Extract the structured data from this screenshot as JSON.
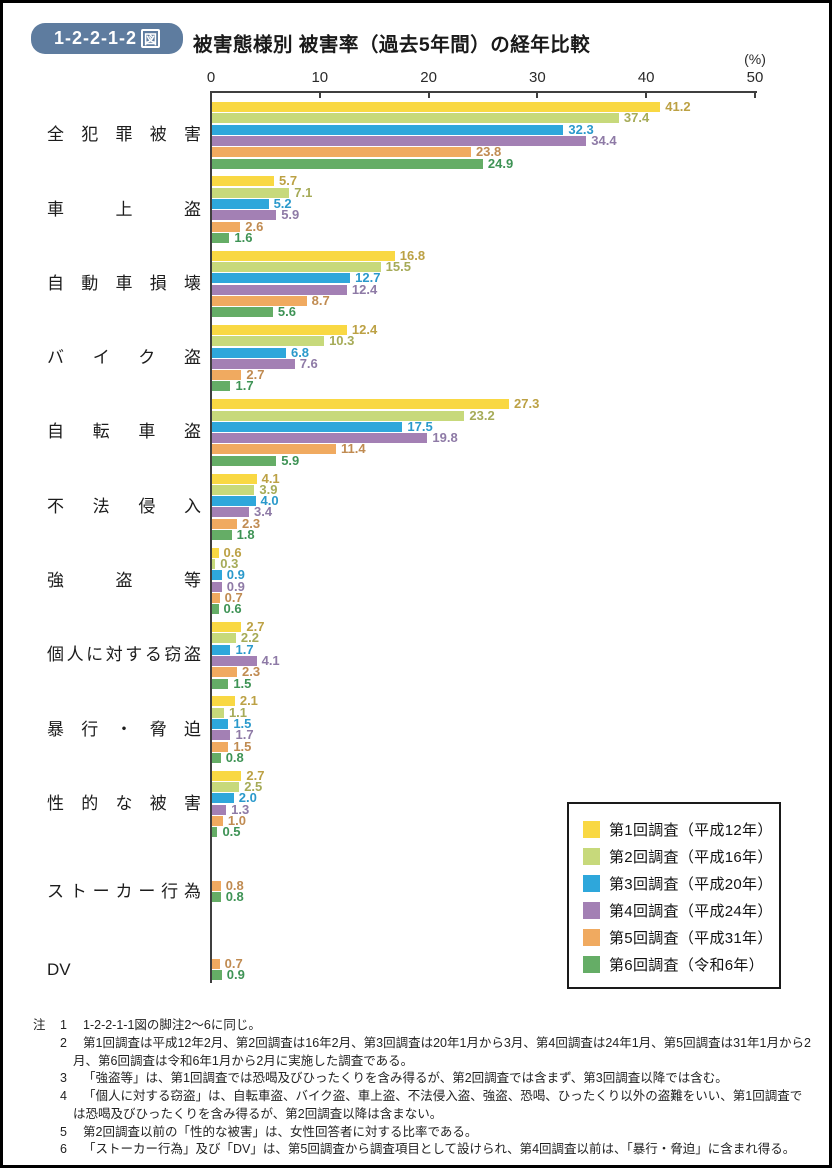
{
  "page": {
    "badge": "1-2-2-1-2",
    "badge_suffix": "図",
    "title": "被害態様別 被害率（過去5年間）の経年比較"
  },
  "chart_data": {
    "type": "bar",
    "orientation": "horizontal",
    "title": "被害態様別 被害率（過去5年間）の経年比較",
    "unit_label": "(%)",
    "xlim": [
      0,
      50
    ],
    "x_ticks": [
      0,
      10,
      20,
      30,
      40,
      50
    ],
    "grid": false,
    "legend_position": "bottom-right-inside",
    "categories": [
      "全犯罪被害",
      "車上盗",
      "自動車損壊",
      "バイク盗",
      "自転車盗",
      "不法侵入",
      "強盗等",
      "個人に対する窃盗",
      "暴行・脅迫",
      "性的な被害",
      "ストーカー行為",
      "DV"
    ],
    "series": [
      {
        "name": "第1回調査（平成12年）",
        "color": "#F9D843",
        "label_color": "#BCA144",
        "values": [
          41.2,
          5.7,
          16.8,
          12.4,
          27.3,
          4.1,
          0.6,
          2.7,
          2.1,
          2.7,
          null,
          null
        ]
      },
      {
        "name": "第2回調査（平成16年）",
        "color": "#C7D97B",
        "label_color": "#A6AB58",
        "values": [
          37.4,
          7.1,
          15.5,
          10.3,
          23.2,
          3.9,
          0.3,
          2.2,
          1.1,
          2.5,
          null,
          null
        ]
      },
      {
        "name": "第3回調査（平成20年）",
        "color": "#2EA7DB",
        "label_color": "#2A99CB",
        "values": [
          32.3,
          5.2,
          12.7,
          6.8,
          17.5,
          4.0,
          0.9,
          1.7,
          1.5,
          2.0,
          null,
          null
        ]
      },
      {
        "name": "第4回調査（平成24年）",
        "color": "#A380B4",
        "label_color": "#8E7AA6",
        "values": [
          34.4,
          5.9,
          12.4,
          7.6,
          19.8,
          3.4,
          0.9,
          4.1,
          1.7,
          1.3,
          null,
          null
        ]
      },
      {
        "name": "第5回調査（平成31年）",
        "color": "#F0AA60",
        "label_color": "#C08B51",
        "values": [
          23.8,
          2.6,
          8.7,
          2.7,
          11.4,
          2.3,
          0.7,
          2.3,
          1.5,
          1.0,
          0.8,
          0.7
        ]
      },
      {
        "name": "第6回調査（令和6年）",
        "color": "#65AD66",
        "label_color": "#3E9355",
        "values": [
          24.9,
          1.6,
          5.6,
          1.7,
          5.9,
          1.8,
          0.6,
          1.5,
          0.8,
          0.5,
          0.8,
          0.9
        ]
      }
    ]
  },
  "notes": {
    "prefix": "注",
    "items": [
      {
        "num": "1",
        "text": "1-2-2-1-1図の脚注2～6に同じ。"
      },
      {
        "num": "2",
        "text": "第1回調査は平成12年2月、第2回調査は16年2月、第3回調査は20年1月から3月、第4回調査は24年1月、第5回調査は31年1月から2月、第6回調査は令和6年1月から2月に実施した調査である。"
      },
      {
        "num": "3",
        "text": "「強盗等」は、第1回調査では恐喝及びひったくりを含み得るが、第2回調査では含まず、第3回調査以降では含む。"
      },
      {
        "num": "4",
        "text": "「個人に対する窃盗」は、自転車盗、バイク盗、車上盗、不法侵入盗、強盗、恐喝、ひったくり以外の盗難をいい、第1回調査では恐喝及びひったくりを含み得るが、第2回調査以降は含まない。"
      },
      {
        "num": "5",
        "text": "第2回調査以前の「性的な被害」は、女性回答者に対する比率である。"
      },
      {
        "num": "6",
        "text": "「ストーカー行為」及び「DV」は、第5回調査から調査項目として設けられ、第4回調査以前は、「暴行・脅迫」に含まれ得る。"
      }
    ]
  }
}
